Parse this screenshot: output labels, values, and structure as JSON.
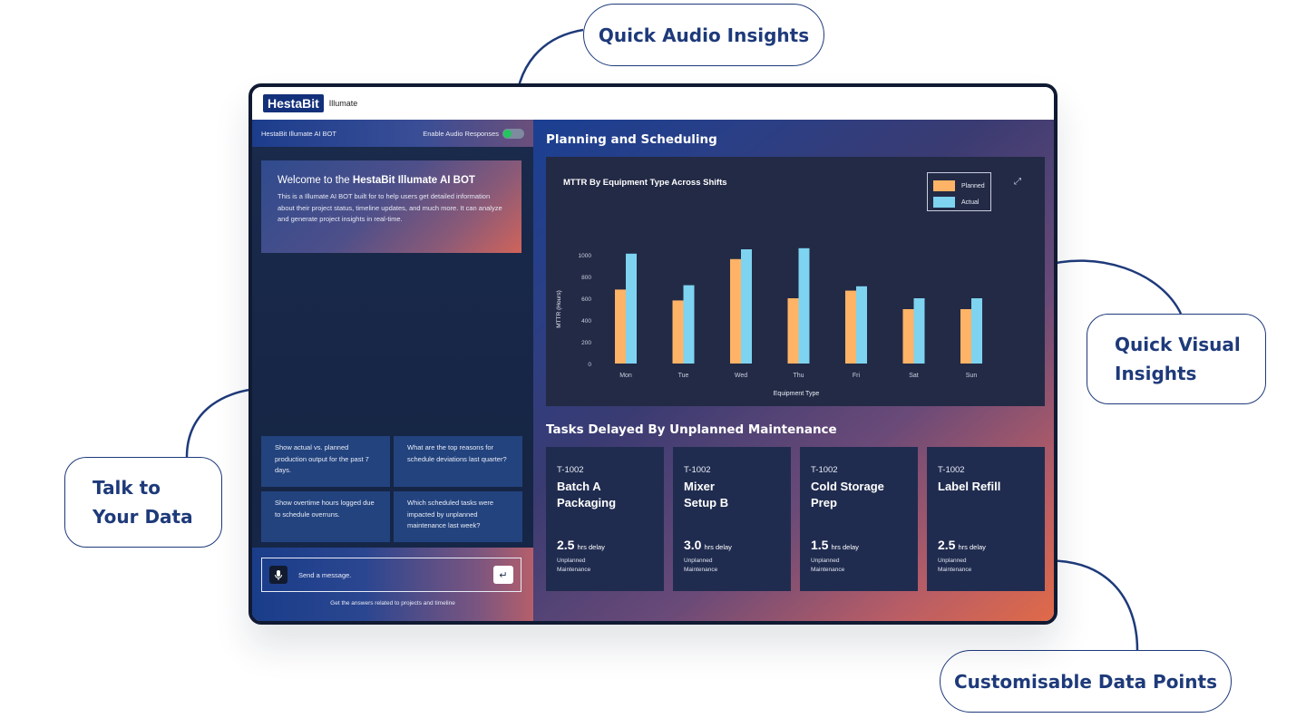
{
  "callouts": {
    "audio": "Quick Audio Insights",
    "visual_line1": "Quick Visual",
    "visual_line2": "Insights",
    "talk_line1": "Talk to",
    "talk_line2": "Your Data",
    "custom": "Customisable Data Points"
  },
  "app": {
    "logo": "HestaBit",
    "product": "Illumate"
  },
  "chat": {
    "header_title": "HestaBit Illumate AI BOT",
    "audio_toggle_label": "Enable Audio Responses",
    "audio_toggle_on": true,
    "welcome_prefix": "Welcome to the ",
    "welcome_name": "HestaBit Illumate AI BOT",
    "welcome_body": "This is a Illumate AI BOT built for to help users get detailed information about their project status, timeline updates, and much more. It can analyze and generate project insights in real-time.",
    "suggestions": [
      "Show actual vs. planned production output for the past 7 days.",
      "What are the top reasons for schedule deviations last quarter?",
      "Show overtime hours logged due to schedule overruns.",
      "Which scheduled tasks were impacted by unplanned maintenance last week?"
    ],
    "input_placeholder": "Send a message.",
    "footer_note": "Get the answers related to projects and timeline"
  },
  "dashboard": {
    "planning_title": "Planning and Scheduling",
    "tasks_title": "Tasks Delayed By Unplanned Maintenance",
    "tasks": [
      {
        "id": "T-1002",
        "name_line1": "Batch A",
        "name_line2": "Packaging",
        "delay": "2.5",
        "delay_unit": "hrs delay",
        "type_line1": "Unplanned",
        "type_line2": "Maintenance"
      },
      {
        "id": "T-1002",
        "name_line1": "Mixer",
        "name_line2": "Setup B",
        "delay": "3.0",
        "delay_unit": "hrs delay",
        "type_line1": "Unplanned",
        "type_line2": "Maintenance"
      },
      {
        "id": "T-1002",
        "name_line1": "Cold Storage",
        "name_line2": "Prep",
        "delay": "1.5",
        "delay_unit": "hrs delay",
        "type_line1": "Unplanned",
        "type_line2": "Maintenance"
      },
      {
        "id": "T-1002",
        "name_line1": "Label Refill",
        "name_line2": "",
        "delay": "2.5",
        "delay_unit": "hrs delay",
        "type_line1": "Unplanned",
        "type_line2": "Maintenance"
      }
    ]
  },
  "colors": {
    "planned": "#ffb366",
    "actual": "#7dd3f0",
    "brand": "#13307a",
    "callout": "#1e3a7a"
  },
  "icons": {
    "mic": "mic-icon",
    "send": "enter-icon",
    "expand": "expand-icon",
    "toggle": "toggle-switch"
  },
  "chart_data": {
    "type": "bar",
    "title": "MTTR By Equipment Type Across Shifts",
    "xlabel": "Equipment Type",
    "ylabel": "MTTR (Hours)",
    "ylim": [
      0,
      1000
    ],
    "yticks": [
      0,
      200,
      400,
      600,
      800,
      1000
    ],
    "categories": [
      "Mon",
      "Tue",
      "Wed",
      "Thu",
      "Fri",
      "Sat",
      "Sun"
    ],
    "series": [
      {
        "name": "Planned",
        "values": [
          680,
          580,
          960,
          600,
          670,
          500,
          500
        ]
      },
      {
        "name": "Actual",
        "values": [
          1010,
          720,
          1050,
          1060,
          710,
          600,
          600
        ]
      }
    ],
    "legend": "top-right",
    "grid": false
  }
}
